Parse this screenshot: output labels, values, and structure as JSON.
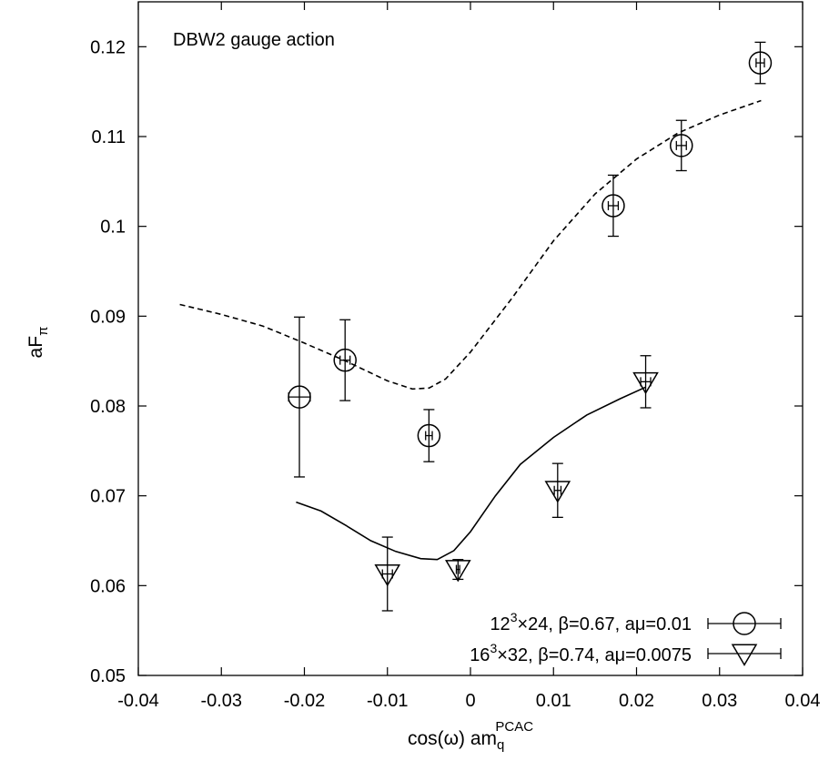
{
  "chart_data": {
    "type": "scatter",
    "annotation": "DBW2 gauge action",
    "xlabel": {
      "main": "cos(ω) am",
      "sub": "q",
      "sup": "PCAC"
    },
    "ylabel": {
      "main": "aF",
      "sub": "π"
    },
    "xlim": [
      -0.04,
      0.04
    ],
    "ylim": [
      0.05,
      0.125
    ],
    "grid": false,
    "legend_position": "bottom-right",
    "x_ticks": [
      {
        "value": -0.04,
        "label": "-0.04"
      },
      {
        "value": -0.03,
        "label": "-0.03"
      },
      {
        "value": -0.02,
        "label": "-0.02"
      },
      {
        "value": -0.01,
        "label": "-0.01"
      },
      {
        "value": 0,
        "label": "0"
      },
      {
        "value": 0.01,
        "label": "0.01"
      },
      {
        "value": 0.02,
        "label": "0.02"
      },
      {
        "value": 0.03,
        "label": "0.03"
      },
      {
        "value": 0.04,
        "label": "0.04"
      }
    ],
    "y_ticks": [
      {
        "value": 0.05,
        "label": "0.05"
      },
      {
        "value": 0.06,
        "label": "0.06"
      },
      {
        "value": 0.07,
        "label": "0.07"
      },
      {
        "value": 0.08,
        "label": "0.08"
      },
      {
        "value": 0.09,
        "label": "0.09"
      },
      {
        "value": 0.1,
        "label": "0.1"
      },
      {
        "value": 0.11,
        "label": "0.11"
      },
      {
        "value": 0.12,
        "label": "0.12"
      }
    ],
    "series": [
      {
        "legend": {
          "l1": "12",
          "s1": "3",
          "l2": "×24, β=0.67, aμ=0.01"
        },
        "marker": "circle",
        "points": [
          {
            "x": -0.0206,
            "y": 0.081,
            "xerr": 0.0013,
            "yerr": 0.0089
          },
          {
            "x": -0.0151,
            "y": 0.0851,
            "xerr": 0.0006,
            "yerr": 0.0045
          },
          {
            "x": -0.005,
            "y": 0.0767,
            "xerr": 0.0004,
            "yerr": 0.0029
          },
          {
            "x": 0.0172,
            "y": 0.1023,
            "xerr": 0.0006,
            "yerr": 0.0034
          },
          {
            "x": 0.0254,
            "y": 0.109,
            "xerr": 0.0006,
            "yerr": 0.0028
          },
          {
            "x": 0.0349,
            "y": 0.1182,
            "xerr": 0.0005,
            "yerr": 0.0023
          }
        ]
      },
      {
        "legend": {
          "l1": "16",
          "s1": "3",
          "l2": "×32, β=0.74, aμ=0.0075"
        },
        "marker": "triangle-down",
        "points": [
          {
            "x": -0.01,
            "y": 0.0613,
            "xerr": 0.0006,
            "yerr": 0.0041
          },
          {
            "x": -0.0015,
            "y": 0.0618,
            "xerr": 0.0002,
            "yerr": 0.0011
          },
          {
            "x": 0.0105,
            "y": 0.0706,
            "xerr": 0.0004,
            "yerr": 0.003
          },
          {
            "x": 0.0211,
            "y": 0.0827,
            "xerr": 0.0006,
            "yerr": 0.0029
          }
        ]
      }
    ],
    "fit_curves": [
      {
        "style": "dashed",
        "points": [
          [
            -0.035,
            0.0913
          ],
          [
            -0.03,
            0.0902
          ],
          [
            -0.025,
            0.0889
          ],
          [
            -0.02,
            0.087
          ],
          [
            -0.015,
            0.085
          ],
          [
            -0.01,
            0.0828
          ],
          [
            -0.007,
            0.0819
          ],
          [
            -0.005,
            0.082
          ],
          [
            -0.003,
            0.083
          ],
          [
            0.0,
            0.086
          ],
          [
            0.005,
            0.092
          ],
          [
            0.01,
            0.0984
          ],
          [
            0.015,
            0.1036
          ],
          [
            0.02,
            0.1075
          ],
          [
            0.025,
            0.1104
          ],
          [
            0.03,
            0.1124
          ],
          [
            0.035,
            0.114
          ]
        ]
      },
      {
        "style": "solid",
        "points": [
          [
            -0.021,
            0.0693
          ],
          [
            -0.018,
            0.0683
          ],
          [
            -0.015,
            0.0667
          ],
          [
            -0.012,
            0.065
          ],
          [
            -0.009,
            0.0638
          ],
          [
            -0.006,
            0.063
          ],
          [
            -0.004,
            0.0629
          ],
          [
            -0.002,
            0.0639
          ],
          [
            0.0,
            0.066
          ],
          [
            0.003,
            0.07
          ],
          [
            0.006,
            0.0735
          ],
          [
            0.01,
            0.0765
          ],
          [
            0.014,
            0.079
          ],
          [
            0.018,
            0.0808
          ],
          [
            0.0211,
            0.0821
          ]
        ]
      }
    ]
  }
}
